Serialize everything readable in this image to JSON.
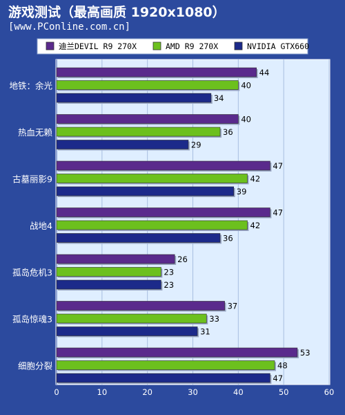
{
  "chart_data": {
    "type": "bar",
    "orientation": "horizontal",
    "title": "游戏测试（最高画质 1920x1080）",
    "subtitle": "[www.PConline.com.cn]",
    "categories": [
      "地铁：余光",
      "热血无赖",
      "古墓丽影9",
      "战地4",
      "孤岛危机3",
      "孤岛惊魂3",
      "细胞分裂"
    ],
    "series": [
      {
        "name": "迪兰DEVIL R9 270X",
        "color": "#5a2a8c",
        "values": [
          44,
          40,
          47,
          47,
          26,
          37,
          53
        ]
      },
      {
        "name": "AMD R9 270X",
        "color": "#6cc01e",
        "values": [
          40,
          36,
          42,
          42,
          23,
          33,
          48
        ]
      },
      {
        "name": "NVIDIA GTX660",
        "color": "#1c2a8a",
        "values": [
          34,
          29,
          39,
          36,
          23,
          31,
          47
        ]
      }
    ],
    "xlim": [
      0,
      60
    ],
    "xticks": [
      0,
      10,
      20,
      30,
      40,
      50,
      60
    ],
    "grid": true,
    "legend": "top",
    "colors": {
      "background": "#2c4a9e",
      "plot_bg": "#dfeeff",
      "grid": "#a8bfe0",
      "text_light": "#ffffff",
      "text_dark": "#000000"
    }
  }
}
